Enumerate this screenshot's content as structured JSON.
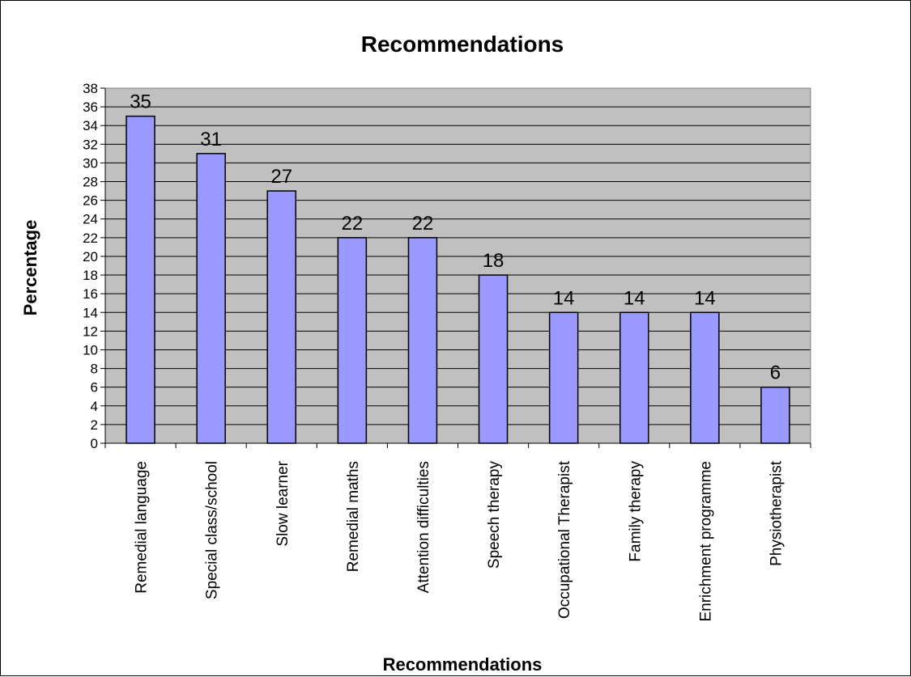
{
  "chart_data": {
    "type": "bar",
    "title": "Recommendations",
    "xlabel": "Recommendations",
    "ylabel": "Percentage",
    "categories": [
      "Remedial language",
      "Special class/school",
      "Slow learner",
      "Remedial maths",
      "Attention difficulties",
      "Speech therapy",
      "Occupational Therapist",
      "Family therapy",
      "Enrichment programme",
      "Physiotherapist"
    ],
    "values": [
      35,
      31,
      27,
      22,
      22,
      18,
      14,
      14,
      14,
      6
    ],
    "ylim": [
      0,
      38
    ],
    "ytick_step": 2,
    "grid": true,
    "legend": "none",
    "colors": {
      "bar_fill": "#9999ff",
      "bar_stroke": "#000000",
      "plot_background": "#c0c0c0",
      "gridline": "#000000"
    }
  }
}
